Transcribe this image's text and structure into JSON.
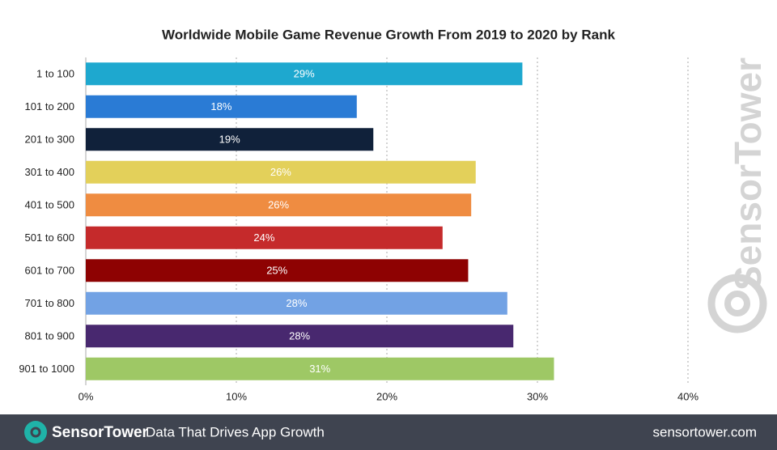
{
  "chart_data": {
    "type": "hbar",
    "title": "Worldwide Mobile Game Revenue Growth From 2019 to 2020 by Rank",
    "categories": [
      "1 to 100",
      "101 to 200",
      "201 to 300",
      "301 to 400",
      "401 to 500",
      "501 to 600",
      "601 to 700",
      "701 to 800",
      "801 to 900",
      "901 to 1000"
    ],
    "values": [
      29.0,
      18.0,
      19.1,
      25.9,
      25.6,
      23.7,
      25.4,
      28.0,
      28.4,
      31.1
    ],
    "value_labels": [
      "29%",
      "18%",
      "19%",
      "26%",
      "26%",
      "24%",
      "25%",
      "28%",
      "28%",
      "31%"
    ],
    "colors": [
      "#1ea8cf",
      "#2a7bd5",
      "#10213a",
      "#e3d05a",
      "#ef8c41",
      "#c52a2b",
      "#8e0202",
      "#72a2e4",
      "#48286f",
      "#9ec865"
    ],
    "xlim": [
      0,
      40
    ],
    "xticks": [
      {
        "value": 0,
        "label": "0%"
      },
      {
        "value": 10,
        "label": "10%"
      },
      {
        "value": 20,
        "label": "20%"
      },
      {
        "value": 30,
        "label": "30%"
      },
      {
        "value": 40,
        "label": "40%"
      }
    ],
    "grid": true
  },
  "watermark": "SensorTower",
  "footer": {
    "brand": "SensorTower",
    "tagline": "Data That Drives App Growth",
    "url": "sensortower.com"
  }
}
